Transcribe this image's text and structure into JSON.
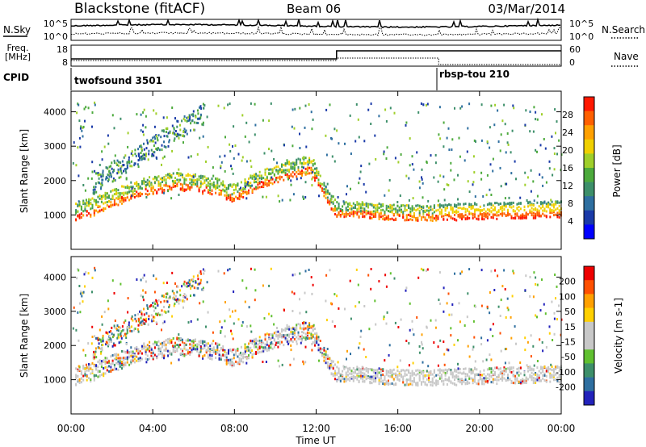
{
  "header": {
    "site": "Blackstone (fitACF)",
    "beam": "Beam 06",
    "date": "03/Mar/2014"
  },
  "noise_panel": {
    "left_label": "N.Sky",
    "right_label": "N.Search",
    "left_ticks": [
      "10^5",
      "10^0"
    ],
    "right_ticks": [
      "10^5",
      "10^0"
    ]
  },
  "freq_panel": {
    "left_label_1": "Freq.",
    "left_label_2": "[MHz]",
    "right_label": "Nave",
    "left_ticks": [
      "18",
      "8"
    ],
    "right_ticks": [
      "60",
      "0"
    ]
  },
  "cpid": {
    "label": "CPID",
    "modes": [
      {
        "name": "twofsound 3501",
        "start_hour": 0
      },
      {
        "name": "rbsp-tou 210",
        "start_hour": 18
      }
    ]
  },
  "x_axis": {
    "label": "Time UT",
    "ticks": [
      "00:00",
      "04:00",
      "08:00",
      "12:00",
      "16:00",
      "20:00",
      "00:00"
    ],
    "range_hours": [
      0,
      24
    ]
  },
  "colors": {
    "power": [
      "#0000ff",
      "#1a3aa8",
      "#2e6fa0",
      "#3d8f6a",
      "#4caa3c",
      "#9fcf2a",
      "#f0d000",
      "#ffa000",
      "#ff6000",
      "#ff1800"
    ],
    "velocity": [
      "#2222bb",
      "#2e6fa0",
      "#3d8f6a",
      "#60c030",
      "#c8c8c8",
      "#c8c8c8",
      "#ffd000",
      "#ffa000",
      "#ff5000",
      "#ee0000"
    ]
  },
  "chart_data": [
    {
      "type": "heatmap",
      "name": "Power",
      "ylabel": "Slant Range [km]",
      "xlabel": "Time UT",
      "ylim": [
        0,
        4600
      ],
      "yticks": [
        1000,
        2000,
        3000,
        4000
      ],
      "colorbar": {
        "label": "Power [dB]",
        "ticks": [
          "4",
          "8",
          "12",
          "16",
          "20",
          "24",
          "28"
        ]
      },
      "band_center_km": [
        [
          0,
          1000
        ],
        [
          1,
          1150
        ],
        [
          2,
          1400
        ],
        [
          3,
          1650
        ],
        [
          4,
          1800
        ],
        [
          5,
          1900
        ],
        [
          6,
          1850
        ],
        [
          7,
          1750
        ],
        [
          8,
          1550
        ],
        [
          9,
          1900
        ],
        [
          10,
          2100
        ],
        [
          11,
          2300
        ],
        [
          11.7,
          2400
        ],
        [
          12.5,
          1500
        ],
        [
          13,
          1100
        ],
        [
          14,
          1100
        ],
        [
          16,
          1000
        ],
        [
          18,
          1000
        ],
        [
          20,
          1050
        ],
        [
          24,
          1100
        ]
      ]
    },
    {
      "type": "heatmap",
      "name": "Velocity",
      "ylabel": "Slant Range [km]",
      "xlabel": "Time UT",
      "ylim": [
        0,
        4600
      ],
      "yticks": [
        1000,
        2000,
        3000,
        4000
      ],
      "colorbar": {
        "label": "Velocity [m s-1]",
        "ticks": [
          "200",
          "100",
          "50",
          "15",
          "-15",
          "-50",
          "-100",
          "-200"
        ]
      }
    }
  ]
}
